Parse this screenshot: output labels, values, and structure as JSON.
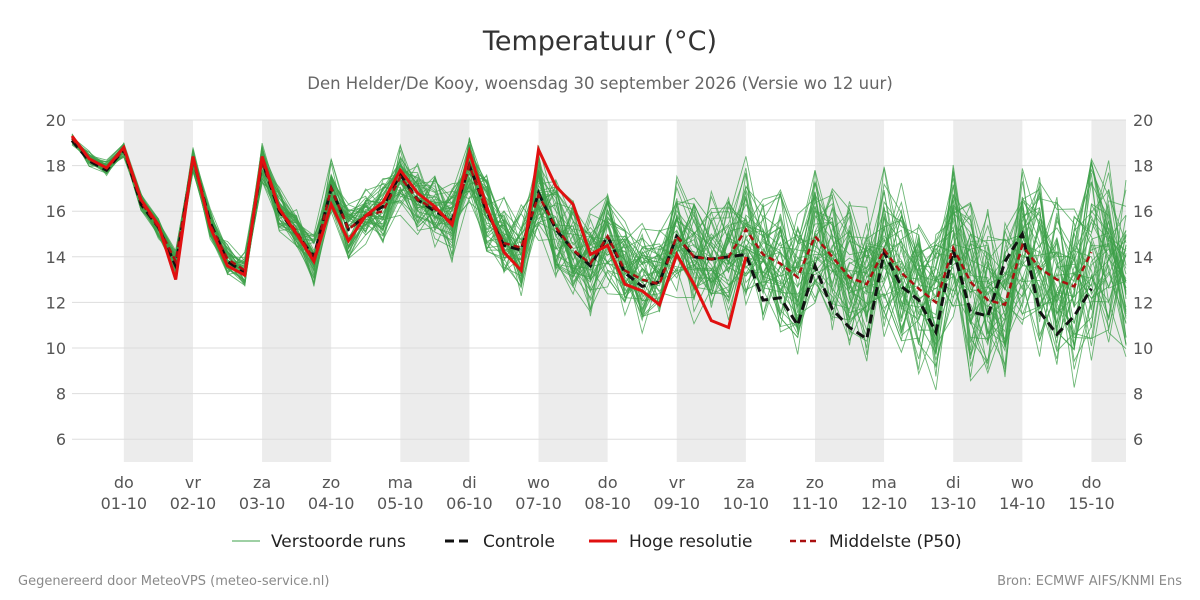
{
  "chart_data": {
    "type": "line",
    "title": "Temperatuur (°C)",
    "subtitle": "Den Helder/De Kooy, woensdag 30 september 2026 (Versie wo 12 uur)",
    "ylim": [
      5,
      20
    ],
    "yticks": [
      6,
      8,
      10,
      12,
      14,
      16,
      18,
      20
    ],
    "xlim": [
      -0.75,
      14.5
    ],
    "categories": [
      {
        "day": "do",
        "date": "01-10"
      },
      {
        "day": "vr",
        "date": "02-10"
      },
      {
        "day": "za",
        "date": "03-10"
      },
      {
        "day": "zo",
        "date": "04-10"
      },
      {
        "day": "ma",
        "date": "05-10"
      },
      {
        "day": "di",
        "date": "06-10"
      },
      {
        "day": "wo",
        "date": "07-10"
      },
      {
        "day": "do",
        "date": "08-10"
      },
      {
        "day": "vr",
        "date": "09-10"
      },
      {
        "day": "za",
        "date": "10-10"
      },
      {
        "day": "zo",
        "date": "11-10"
      },
      {
        "day": "ma",
        "date": "12-10"
      },
      {
        "day": "di",
        "date": "13-10"
      },
      {
        "day": "wo",
        "date": "14-10"
      },
      {
        "day": "do",
        "date": "15-10"
      }
    ],
    "weekend_days": [
      0,
      2,
      4,
      6,
      8,
      10,
      12,
      14
    ],
    "grid": true,
    "legend_position": "bottom",
    "series": [
      {
        "name": "Hoge resolutie",
        "color": "#e01010",
        "style": "solid",
        "x": [
          -0.75,
          -0.5,
          -0.25,
          0,
          0.25,
          0.5,
          0.75,
          1,
          1.25,
          1.5,
          1.75,
          2,
          2.25,
          2.5,
          2.75,
          3,
          3.25,
          3.5,
          3.75,
          4,
          4.25,
          4.5,
          4.75,
          5,
          5.25,
          5.5,
          5.75,
          6,
          6.25,
          6.5,
          6.75,
          7,
          7.25,
          7.5,
          7.75,
          8,
          8.25,
          8.5,
          8.75,
          9,
          9.25,
          9.5
        ],
        "values": [
          19.3,
          18.3,
          17.9,
          18.8,
          16.5,
          15.4,
          13.0,
          18.4,
          15.3,
          13.6,
          13.2,
          18.4,
          16.1,
          15.0,
          13.8,
          16.3,
          14.7,
          15.8,
          16.4,
          17.8,
          16.8,
          16.2,
          15.4,
          18.6,
          16.2,
          14.2,
          13.4,
          18.7,
          17.1,
          16.3,
          14.1,
          14.5,
          12.8,
          12.5,
          11.9,
          14.1,
          12.8,
          11.2,
          10.9,
          14.0,
          null,
          null
        ]
      },
      {
        "name": "Controle",
        "color": "#111111",
        "style": "dash",
        "x": [
          -0.75,
          -0.5,
          -0.25,
          0,
          0.25,
          0.5,
          0.75,
          1,
          1.25,
          1.5,
          1.75,
          2,
          2.25,
          2.5,
          2.75,
          3,
          3.25,
          3.5,
          3.75,
          4,
          4.25,
          4.5,
          4.75,
          5,
          5.25,
          5.5,
          5.75,
          6,
          6.25,
          6.5,
          6.75,
          7,
          7.25,
          7.5,
          7.75,
          8,
          8.25,
          8.5,
          8.75,
          9,
          9.25,
          9.5,
          9.75,
          10,
          10.25,
          10.5,
          10.75,
          11,
          11.25,
          11.5,
          11.75,
          12,
          12.25,
          12.5,
          12.75,
          13,
          13.25,
          13.5,
          13.75,
          14,
          14.25,
          14.5
        ],
        "values": [
          19.1,
          18.2,
          17.8,
          18.7,
          16.3,
          15.3,
          13.6,
          18.3,
          15.5,
          13.8,
          13.3,
          18.2,
          16.0,
          15.0,
          14.0,
          17.0,
          15.2,
          15.8,
          16.2,
          17.6,
          16.5,
          16.0,
          15.6,
          18.0,
          16.0,
          14.5,
          14.3,
          16.8,
          15.2,
          14.3,
          13.6,
          14.9,
          13.3,
          12.7,
          12.9,
          14.9,
          14.0,
          13.9,
          14.0,
          14.1,
          12.1,
          12.2,
          11.0,
          13.6,
          11.7,
          10.9,
          10.4,
          14.2,
          12.7,
          12.1,
          10.7,
          14.3,
          11.6,
          11.4,
          13.8,
          15.0,
          11.6,
          10.6,
          11.4,
          12.6,
          null,
          null
        ]
      },
      {
        "name": "Middelste (P50)",
        "color": "#aa1010",
        "style": "shortdash",
        "x": [
          -0.75,
          -0.5,
          -0.25,
          0,
          0.25,
          0.5,
          0.75,
          1,
          1.25,
          1.5,
          1.75,
          2,
          2.25,
          2.5,
          2.75,
          3,
          3.25,
          3.5,
          3.75,
          4,
          4.25,
          4.5,
          4.75,
          5,
          5.25,
          5.5,
          5.75,
          6,
          6.25,
          6.5,
          6.75,
          7,
          7.25,
          7.5,
          7.75,
          8,
          8.25,
          8.5,
          8.75,
          9,
          9.25,
          9.5,
          9.75,
          10,
          10.25,
          10.5,
          10.75,
          11,
          11.25,
          11.5,
          11.75,
          12,
          12.25,
          12.5,
          12.75,
          13,
          13.25,
          13.5,
          13.75,
          14,
          14.25,
          14.5
        ],
        "values": [
          19.2,
          18.3,
          17.9,
          18.7,
          16.4,
          15.3,
          13.8,
          18.3,
          15.4,
          13.9,
          13.4,
          18.2,
          16.1,
          15.1,
          13.9,
          17.0,
          15.2,
          15.8,
          16.0,
          17.5,
          16.5,
          16.1,
          15.5,
          18.0,
          16.0,
          14.6,
          14.4,
          16.7,
          15.3,
          14.3,
          13.7,
          14.9,
          13.4,
          13.0,
          12.8,
          14.9,
          14.0,
          13.9,
          14.0,
          15.2,
          14.1,
          13.7,
          13.1,
          14.9,
          14.0,
          13.1,
          12.8,
          14.3,
          13.3,
          12.6,
          12.0,
          14.4,
          12.9,
          12.1,
          11.9,
          14.5,
          13.5,
          13.0,
          12.7,
          14.2,
          null,
          null
        ]
      },
      {
        "name": "Verstoorde runs",
        "color": "#3da04a",
        "style": "thin"
      }
    ]
  },
  "legend": {
    "items": [
      {
        "label": "Verstoorde runs",
        "color": "#3da04a"
      },
      {
        "label": "Controle",
        "color": "#111111"
      },
      {
        "label": "Hoge resolutie",
        "color": "#e01010"
      },
      {
        "label": "Middelste (P50)",
        "color": "#aa1010"
      }
    ]
  },
  "footer": {
    "left": "Gegenereerd door MeteoVPS (meteo-service.nl)",
    "right": "Bron: ECMWF AIFS/KNMI Ens"
  },
  "colors": {
    "grid": "#dddddd",
    "weekend_band": "#ececec",
    "ensemble": "#3da04a"
  }
}
